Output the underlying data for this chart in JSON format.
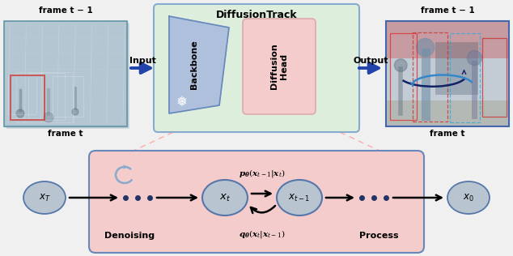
{
  "title": "DiffusionTrack",
  "backbone_label": "Backbone",
  "diffusion_head_label": "Diffusion\nHead",
  "denoising_label": "Denoising",
  "process_label": "Process",
  "input_label": "Input",
  "output_label": "Output",
  "xt_label": "$x_t$",
  "xt1_label": "$x_{t-1}$",
  "xT_label": "$x_T$",
  "x0_label": "$x_0$",
  "p_theta_label": "$\\boldsymbol{p}_{\\boldsymbol{\\theta}}(\\boldsymbol{x}_{t-1}|\\boldsymbol{x}_t)$",
  "q_theta_label": "$\\boldsymbol{q}_{\\boldsymbol{\\theta}}(\\boldsymbol{x}_t|\\boldsymbol{x}_{t-1})$",
  "bg_color": "#f0f0f0",
  "green_box_color": "#ddeedd",
  "green_box_border": "#88aacc",
  "backbone_color": "#aabbdd",
  "pink_box_color": "#f5cccc",
  "pink_box_border": "#ddaaaa",
  "arrow_color": "#2244aa",
  "node_color": "#b8c4d0",
  "node_border": "#5577aa",
  "bottom_box_color": "#f5cccc",
  "bottom_box_border": "#6688bb",
  "dot_color": "#223366",
  "refresh_color": "#88aacc"
}
